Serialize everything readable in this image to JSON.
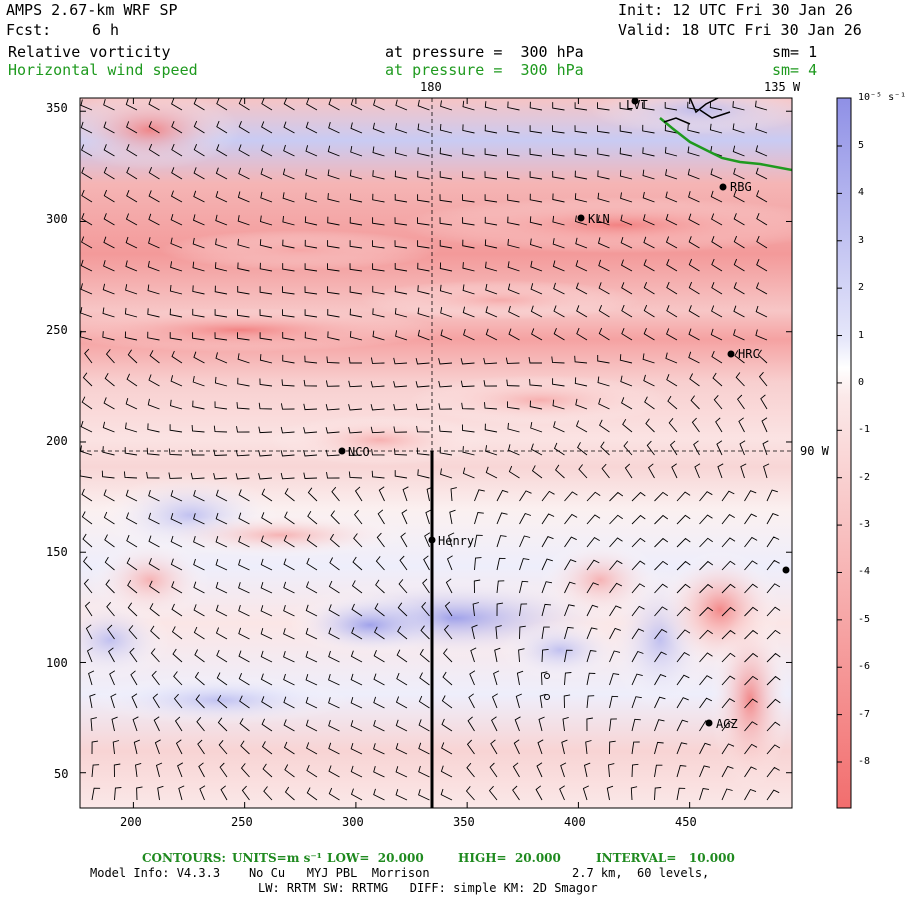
{
  "header": {
    "model": "AMPS 2.67-km WRF SP",
    "init": "Init: 12 UTC Fri 30 Jan 26",
    "fcst_label": "Fcst:",
    "fcst_value": "6 h",
    "valid": "Valid: 18 UTC Fri 30 Jan 26",
    "field1": "Relative vorticity",
    "field1_level": "at pressure =  300 hPa",
    "field1_sm": "sm= 1",
    "field2": "Horizontal wind speed",
    "field2_level": "at pressure =  300 hPa",
    "field2_sm": "sm= 4"
  },
  "map": {
    "lon_labels": [
      "180",
      "135 W",
      "90 W"
    ],
    "stations": [
      "LVT",
      "RBG",
      "KLN",
      "HRC",
      "NCO",
      "Henry",
      "AGZ"
    ],
    "x_ticks": [
      200,
      250,
      300,
      350,
      400,
      450
    ],
    "y_ticks": [
      50,
      100,
      150,
      200,
      250,
      300,
      350
    ],
    "xlim": [
      176,
      496
    ],
    "ylim": [
      34,
      356
    ]
  },
  "colorbar": {
    "units": "10⁻⁵ s⁻¹",
    "ticks": [
      "5",
      "4",
      "3",
      "2",
      "1",
      "0",
      "-1",
      "-2",
      "-3",
      "-4",
      "-5",
      "-6",
      "-7",
      "-8"
    ],
    "positive_color": "#8f90e6",
    "negative_color": "#f26e6e"
  },
  "footer": {
    "contours_label": "CONTOURS:",
    "units_label": "UNITS=m s⁻¹",
    "low": "LOW=  20.000",
    "high": "HIGH=  20.000",
    "interval": "INTERVAL=   10.000",
    "model_info": "Model Info: V4.3.3    No Cu   MYJ PBL  Morrison",
    "model_info_right": "2.7 km,  60 levels,",
    "model_info2": "LW: RRTM SW: RRTMG   DIFF: simple KM: 2D Smagor"
  }
}
